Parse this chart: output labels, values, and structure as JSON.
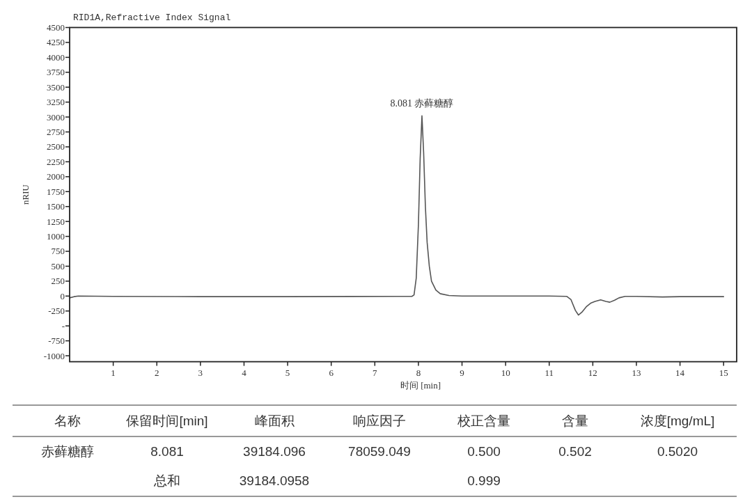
{
  "chart_data": [
    {
      "type": "line",
      "title": "RID1A,Refractive Index Signal",
      "xlabel": "时间 [min]",
      "ylabel": "nRIU",
      "annotations": [
        {
          "text": "8.081 赤藓糖醇",
          "x": 8.081,
          "y": 3020
        }
      ],
      "xlim": [
        0,
        15.3
      ],
      "ylim": [
        -1100,
        4500
      ],
      "xticks": [
        1,
        2,
        3,
        4,
        5,
        6,
        7,
        8,
        9,
        10,
        11,
        12,
        13,
        14,
        15
      ],
      "yticks": [
        -1000,
        -750,
        {
          "value": -500,
          "label": "-"
        },
        -250,
        0,
        250,
        500,
        750,
        1000,
        1250,
        1500,
        1750,
        2000,
        2250,
        2500,
        2750,
        3000,
        3250,
        3500,
        3750,
        4000,
        4250,
        4500
      ],
      "series": [
        {
          "color": "#555555",
          "x": [
            0.0,
            0.1,
            0.2,
            1,
            3,
            5,
            7.5,
            7.85,
            7.9,
            7.95,
            8.0,
            8.04,
            8.081,
            8.12,
            8.16,
            8.2,
            8.25,
            8.3,
            8.4,
            8.5,
            8.7,
            9,
            11,
            11.4,
            11.5,
            11.6,
            11.67,
            11.75,
            11.85,
            11.95,
            12.05,
            12.18,
            12.3,
            12.39,
            12.5,
            12.6,
            12.74,
            13,
            13.6,
            14,
            15
          ],
          "values": [
            -30,
            -10,
            0,
            -5,
            -10,
            -10,
            -5,
            -5,
            20,
            300,
            1200,
            2300,
            3020,
            2400,
            1500,
            900,
            500,
            250,
            100,
            40,
            10,
            0,
            0,
            -5,
            -60,
            -240,
            -318,
            -270,
            -180,
            -120,
            -90,
            -64,
            -90,
            -103,
            -70,
            -30,
            -5,
            -5,
            -15,
            -10,
            -10
          ]
        }
      ]
    },
    {
      "type": "other",
      "categories": [
        "名称",
        "保留时间[min]",
        "峰面积",
        "响应因子",
        "校正含量",
        "含量",
        "浓度[mg/mL]"
      ],
      "cell_labels": [
        [
          "赤藓糖醇",
          "8.081",
          "39184.096",
          "78059.049",
          "0.500",
          "0.502",
          "0.5020"
        ],
        [
          null,
          "总和",
          "39184.0958",
          null,
          "0.999",
          null,
          null
        ]
      ]
    }
  ]
}
